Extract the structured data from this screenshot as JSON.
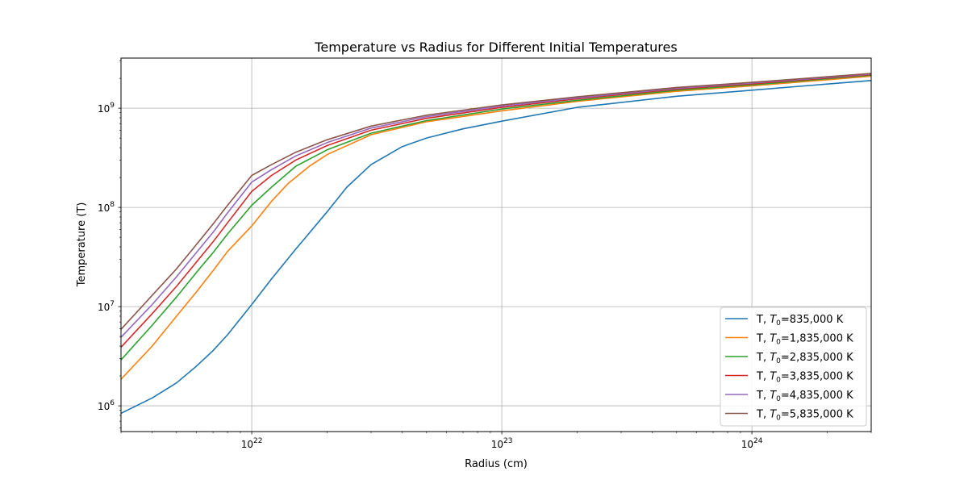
{
  "chart_data": {
    "type": "line",
    "title": "Temperature vs Radius for Different Initial Temperatures",
    "xlabel": "Radius (cm)",
    "ylabel": "Temperature (T)",
    "xscale": "log",
    "yscale": "log",
    "xlim": [
      3e+21,
      3e+24
    ],
    "ylim": [
      550000.0,
      3200000000.0
    ],
    "x_ticks": [
      {
        "value": 1e+22,
        "base": "10",
        "exp": "22"
      },
      {
        "value": 1e+23,
        "base": "10",
        "exp": "23"
      },
      {
        "value": 1e+24,
        "base": "10",
        "exp": "24"
      }
    ],
    "y_ticks": [
      {
        "value": 1000000.0,
        "base": "10",
        "exp": "6"
      },
      {
        "value": 10000000.0,
        "base": "10",
        "exp": "7"
      },
      {
        "value": 100000000.0,
        "base": "10",
        "exp": "8"
      },
      {
        "value": 1000000000.0,
        "base": "10",
        "exp": "9"
      }
    ],
    "grid": true,
    "legend_position": "lower-right",
    "series": [
      {
        "name_prefix": "T, ",
        "name_sym": "T",
        "name_sub": "0",
        "name_suffix": "=835,000 K",
        "color": "#1f77b4",
        "x": [
          3e+21,
          4e+21,
          5e+21,
          6e+21,
          7e+21,
          8e+21,
          1e+22,
          1.2e+22,
          1.5e+22,
          2e+22,
          2.4e+22,
          3e+22,
          4e+22,
          5e+22,
          7e+22,
          1e+23,
          2e+23,
          5e+23,
          1e+24,
          2e+24,
          3e+24
        ],
        "y": [
          840000.0,
          1200000.0,
          1700000.0,
          2500000.0,
          3600000.0,
          5200000.0,
          10500000.0,
          19000000.0,
          38000000.0,
          90000000.0,
          160000000.0,
          270000000.0,
          410000000.0,
          500000000.0,
          620000000.0,
          740000000.0,
          1020000000.0,
          1320000000.0,
          1520000000.0,
          1750000000.0,
          1900000000.0
        ]
      },
      {
        "name_prefix": "T, ",
        "name_sym": "T",
        "name_sub": "0",
        "name_suffix": "=1,835,000 K",
        "color": "#ff7f0e",
        "x": [
          3e+21,
          4e+21,
          5e+21,
          6e+21,
          7e+21,
          8e+21,
          1e+22,
          1.2e+22,
          1.4e+22,
          1.7e+22,
          2e+22,
          3e+22,
          5e+22,
          1e+23,
          2e+23,
          5e+23,
          1e+24,
          3e+24
        ],
        "y": [
          1850000.0,
          4000000.0,
          8000000.0,
          14000000.0,
          23000000.0,
          36000000.0,
          65000000.0,
          115000000.0,
          175000000.0,
          260000000.0,
          340000000.0,
          540000000.0,
          730000000.0,
          940000000.0,
          1170000000.0,
          1480000000.0,
          1680000000.0,
          2100000000.0
        ]
      },
      {
        "name_prefix": "T, ",
        "name_sym": "T",
        "name_sub": "0",
        "name_suffix": "=2,835,000 K",
        "color": "#2ca02c",
        "x": [
          3e+21,
          4e+21,
          5e+21,
          6e+21,
          7e+21,
          8e+21,
          1e+22,
          1.2e+22,
          1.5e+22,
          2e+22,
          3e+22,
          5e+22,
          1e+23,
          2e+23,
          5e+23,
          1e+24,
          3e+24
        ],
        "y": [
          2900000.0,
          6500000.0,
          12500000.0,
          22000000.0,
          35000000.0,
          54000000.0,
          105000000.0,
          160000000.0,
          260000000.0,
          380000000.0,
          560000000.0,
          750000000.0,
          980000000.0,
          1200000000.0,
          1520000000.0,
          1720000000.0,
          2150000000.0
        ]
      },
      {
        "name_prefix": "T, ",
        "name_sym": "T",
        "name_sub": "0",
        "name_suffix": "=3,835,000 K",
        "color": "#d62728",
        "x": [
          3e+21,
          4e+21,
          5e+21,
          6e+21,
          7e+21,
          8e+21,
          1e+22,
          1.2e+22,
          1.5e+22,
          2e+22,
          3e+22,
          5e+22,
          1e+23,
          2e+23,
          5e+23,
          1e+24,
          3e+24
        ],
        "y": [
          3900000.0,
          8500000.0,
          16000000.0,
          28000000.0,
          45000000.0,
          70000000.0,
          145000000.0,
          210000000.0,
          300000000.0,
          420000000.0,
          600000000.0,
          790000000.0,
          1020000000.0,
          1240000000.0,
          1560000000.0,
          1760000000.0,
          2180000000.0
        ]
      },
      {
        "name_prefix": "T, ",
        "name_sym": "T",
        "name_sub": "0",
        "name_suffix": "=4,835,000 K",
        "color": "#9467bd",
        "x": [
          3e+21,
          4e+21,
          5e+21,
          6e+21,
          7e+21,
          8e+21,
          1e+22,
          1.2e+22,
          1.5e+22,
          2e+22,
          3e+22,
          5e+22,
          1e+23,
          2e+23,
          5e+23,
          1e+24,
          3e+24
        ],
        "y": [
          4900000.0,
          10500000.0,
          20000000.0,
          35000000.0,
          56000000.0,
          88000000.0,
          180000000.0,
          240000000.0,
          330000000.0,
          450000000.0,
          630000000.0,
          820000000.0,
          1050000000.0,
          1270000000.0,
          1590000000.0,
          1790000000.0,
          2210000000.0
        ]
      },
      {
        "name_prefix": "T, ",
        "name_sym": "T",
        "name_sub": "0",
        "name_suffix": "=5,835,000 K",
        "color": "#8c564b",
        "x": [
          3e+21,
          4e+21,
          5e+21,
          6e+21,
          7e+21,
          8e+21,
          1e+22,
          1.2e+22,
          1.5e+22,
          2e+22,
          3e+22,
          5e+22,
          1e+23,
          2e+23,
          5e+23,
          1e+24,
          3e+24
        ],
        "y": [
          5900000.0,
          13000000.0,
          24000000.0,
          42000000.0,
          68000000.0,
          105000000.0,
          210000000.0,
          270000000.0,
          360000000.0,
          480000000.0,
          660000000.0,
          850000000.0,
          1080000000.0,
          1300000000.0,
          1620000000.0,
          1820000000.0,
          2240000000.0
        ]
      }
    ]
  }
}
